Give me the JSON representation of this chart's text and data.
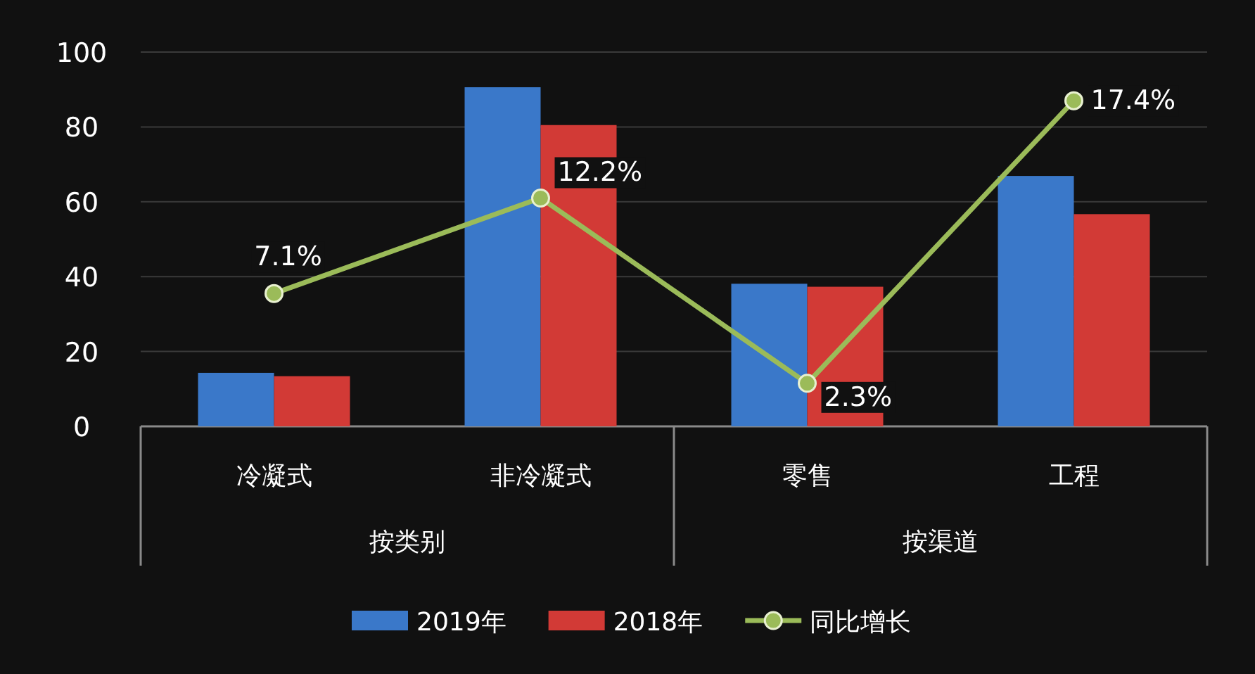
{
  "chart_data": {
    "type": "bar",
    "categories": [
      "冷凝式",
      "非冷凝式",
      "零售",
      "工程"
    ],
    "annotations": [
      "按类别",
      "按渠道"
    ],
    "ylim": [
      0,
      100
    ],
    "yticks": [
      0,
      20,
      40,
      60,
      80,
      100
    ],
    "y2lim": [
      0,
      20
    ],
    "grid": "y",
    "legend": "bottom",
    "marker": "circle",
    "tick_labels": [
      "x",
      "y"
    ],
    "series": [
      {
        "name": "2019年",
        "color": "#3a78c9",
        "values": [
          14.3,
          90.6,
          38.1,
          66.9
        ]
      },
      {
        "name": "2018年",
        "color": "#d23a36",
        "values": [
          13.4,
          80.5,
          37.3,
          56.7
        ]
      },
      {
        "name": "同比增长",
        "type": "line",
        "axis": "y2",
        "color": "#9bbb59",
        "values": [
          7.1,
          12.2,
          2.3,
          17.4
        ],
        "value_labels": [
          "7.1%",
          "12.2%",
          "2.3%",
          "17.4%"
        ]
      }
    ]
  }
}
